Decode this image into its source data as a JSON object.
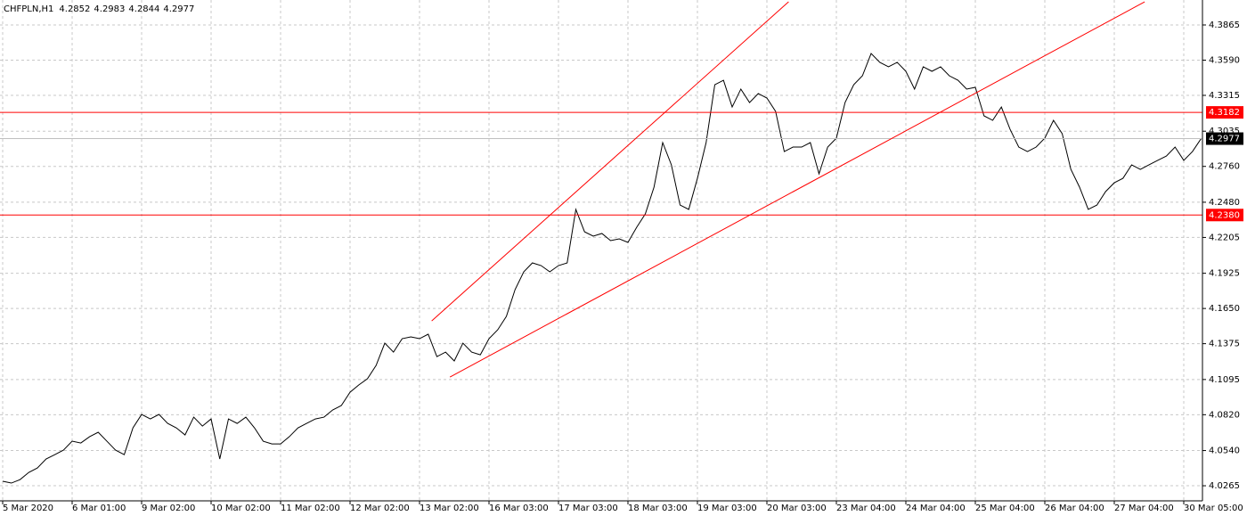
{
  "chart_data": {
    "type": "line",
    "title": "CHFPLN,H1",
    "ohlc": [
      4.2852,
      4.2983,
      4.2844,
      4.2977
    ],
    "categories": [
      "5 Mar 2020",
      null,
      null,
      null,
      null,
      null,
      null,
      null,
      "6 Mar 01:00",
      null,
      null,
      null,
      null,
      null,
      null,
      null,
      "9 Mar 02:00",
      null,
      null,
      null,
      null,
      null,
      null,
      null,
      "10 Mar 02:00",
      null,
      null,
      null,
      null,
      null,
      null,
      null,
      "11 Mar 02:00",
      null,
      null,
      null,
      null,
      null,
      null,
      null,
      "12 Mar 02:00",
      null,
      null,
      null,
      null,
      null,
      null,
      null,
      "13 Mar 02:00",
      null,
      null,
      null,
      null,
      null,
      null,
      null,
      "16 Mar 03:00",
      null,
      null,
      null,
      null,
      null,
      null,
      null,
      "17 Mar 03:00",
      null,
      null,
      null,
      null,
      null,
      null,
      null,
      "18 Mar 03:00",
      null,
      null,
      null,
      null,
      null,
      null,
      null,
      "19 Mar 03:00",
      null,
      null,
      null,
      null,
      null,
      null,
      null,
      "20 Mar 03:00",
      null,
      null,
      null,
      null,
      null,
      null,
      null,
      "23 Mar 04:00",
      null,
      null,
      null,
      null,
      null,
      null,
      null,
      "24 Mar 04:00",
      null,
      null,
      null,
      null,
      null,
      null,
      null,
      "25 Mar 04:00",
      null,
      null,
      null,
      null,
      null,
      null,
      null,
      "26 Mar 04:00",
      null,
      null,
      null,
      null,
      null,
      null,
      null,
      "27 Mar 04:00",
      null,
      null,
      null,
      null,
      null,
      null,
      null,
      "30 Mar 05:00",
      null,
      null
    ],
    "series": [
      {
        "color": "#000000",
        "values": [
          4.03,
          4.0286,
          4.0313,
          4.0369,
          4.0404,
          4.0474,
          4.0508,
          4.0543,
          4.0613,
          4.0599,
          4.0648,
          4.0683,
          4.0613,
          4.0543,
          4.0508,
          4.0717,
          4.0822,
          4.0787,
          4.0822,
          4.0752,
          4.0717,
          4.0662,
          4.0801,
          4.0731,
          4.0787,
          4.0474,
          4.0787,
          4.0752,
          4.0801,
          4.0717,
          4.0613,
          4.0592,
          4.0592,
          4.0648,
          4.0717,
          4.0752,
          4.0787,
          4.0801,
          4.0857,
          4.0892,
          4.0996,
          4.1052,
          4.1101,
          4.1205,
          4.1379,
          4.1309,
          4.1414,
          4.1428,
          4.1414,
          4.1449,
          4.1274,
          4.1309,
          4.124,
          4.1379,
          4.1309,
          4.1288,
          4.1414,
          4.1483,
          4.1588,
          4.1797,
          4.1936,
          4.2006,
          4.1985,
          4.1936,
          4.1985,
          4.2006,
          4.2424,
          4.2249,
          4.2215,
          4.2236,
          4.218,
          4.2194,
          4.2166,
          4.2284,
          4.2389,
          4.2598,
          4.2946,
          4.2772,
          4.2458,
          4.2424,
          4.2667,
          4.2946,
          4.3398,
          4.3433,
          4.3224,
          4.3364,
          4.3259,
          4.3329,
          4.3294,
          4.319,
          4.2876,
          4.2911,
          4.2911,
          4.2946,
          4.2702,
          4.2911,
          4.2981,
          4.3259,
          4.3398,
          4.3468,
          4.3642,
          4.3573,
          4.3538,
          4.3573,
          4.3503,
          4.3364,
          4.3538,
          4.3503,
          4.3538,
          4.3468,
          4.3433,
          4.3364,
          4.3378,
          4.3155,
          4.312,
          4.3224,
          4.305,
          4.2911,
          4.2876,
          4.2911,
          4.2981,
          4.312,
          4.3016,
          4.2737,
          4.2598,
          4.2424,
          4.2458,
          4.2563,
          4.2632,
          4.2667,
          4.2772,
          4.2737,
          4.2772,
          4.2807,
          4.2841,
          4.2911,
          4.2807,
          4.2876,
          4.2977
        ]
      }
    ],
    "ylim": [
      4.0147,
      4.406
    ],
    "yticks": [
      4.3865,
      {
        "value": 4.359,
        "label": "4.3590"
      },
      4.3315,
      4.3035,
      {
        "value": 4.276,
        "label": "4.2760"
      },
      {
        "value": 4.248,
        "label": "4.2480"
      },
      4.2205,
      4.1925,
      {
        "value": 4.165,
        "label": "4.1650"
      },
      4.1375,
      4.1095,
      {
        "value": 4.082,
        "label": "4.0820"
      },
      {
        "value": 4.054,
        "label": "4.0540"
      },
      4.0265
    ],
    "grid": true,
    "hlines": [
      4.3182,
      {
        "value": 4.238,
        "label": "4.2380"
      }
    ],
    "hline_color": "#ff0000",
    "trendlines": [
      {
        "x": [
          49.4,
          90.5
        ],
        "y": [
          4.1553,
          4.4046
        ]
      },
      {
        "x": [
          51.5,
          131.5
        ],
        "y": [
          4.1114,
          4.4046
        ]
      }
    ]
  }
}
